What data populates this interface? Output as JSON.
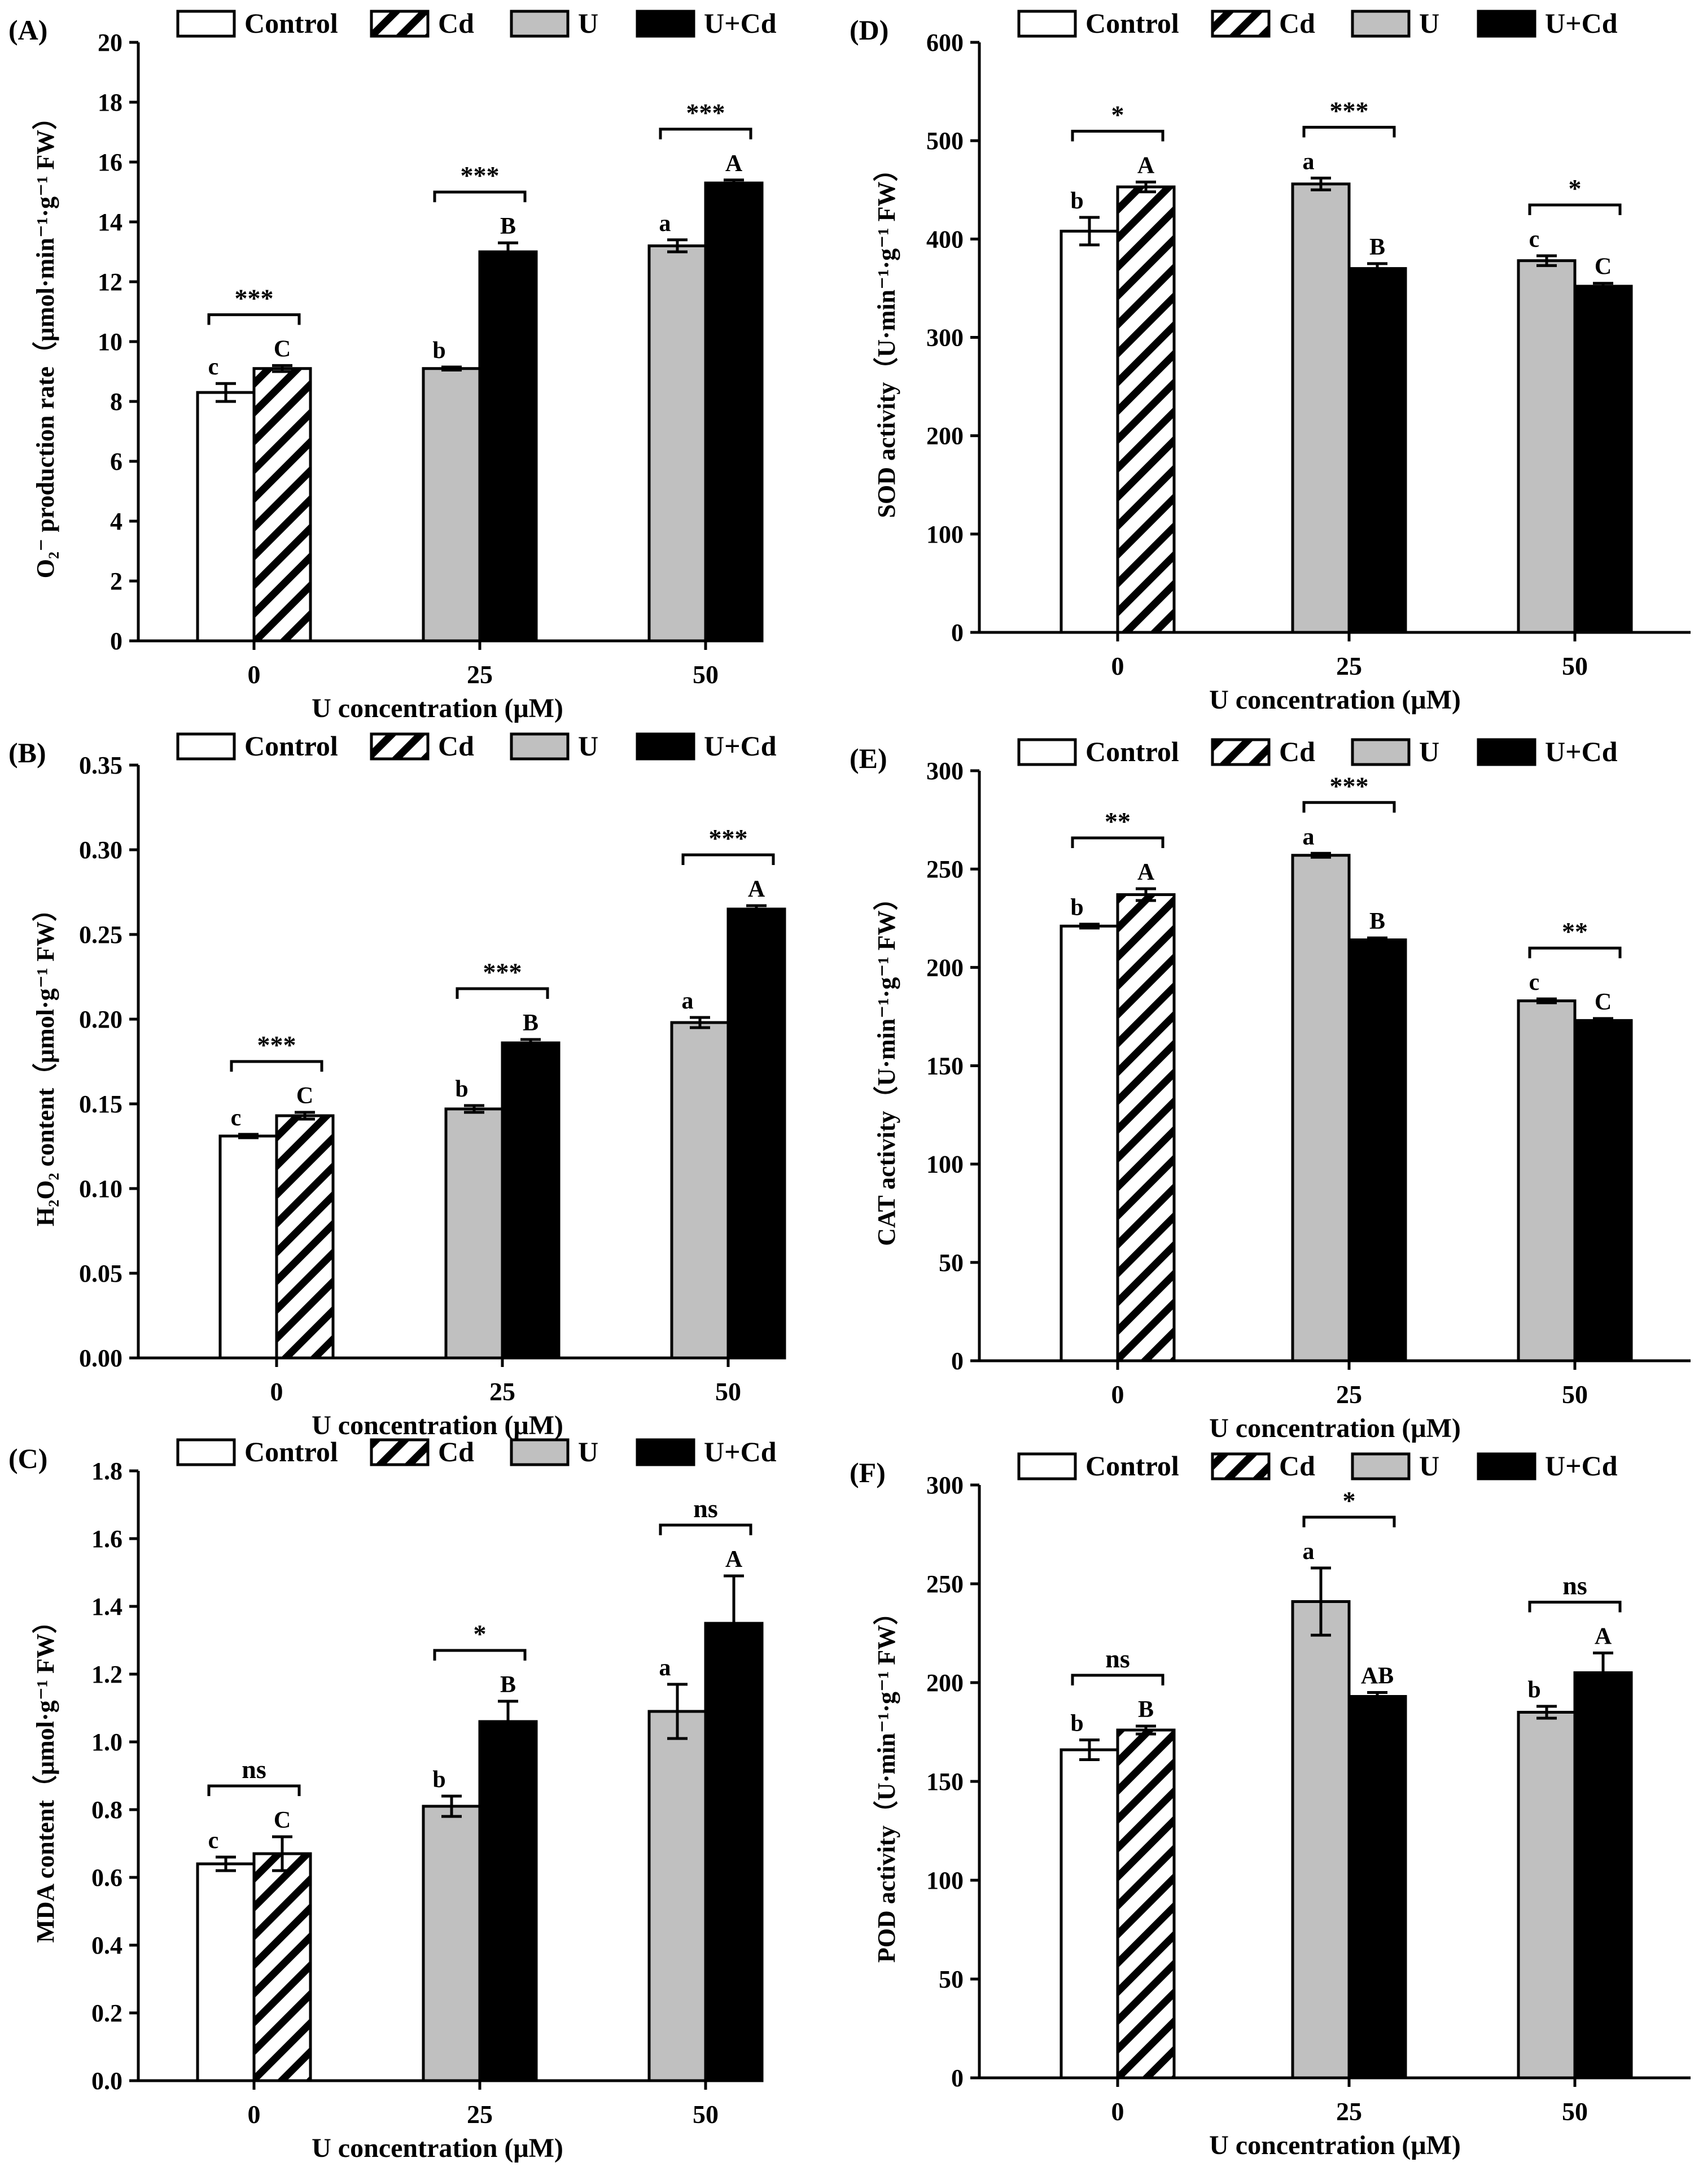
{
  "figure": {
    "legend_labels": [
      "Control",
      "Cd",
      "U",
      "U+Cd"
    ],
    "colors": {
      "control": "#ffffff",
      "u": "#c0c0c0",
      "ucd": "#000000",
      "stroke": "#000000"
    }
  },
  "chart_data": [
    {
      "id": "A",
      "panel_label": "(A)",
      "type": "bar",
      "ylabel": "O₂⁻ production rate（μmol·min⁻¹·g⁻¹ FW）",
      "xlabel": "U concentration (μM)",
      "ylim": [
        0,
        20
      ],
      "ytick_step": 2,
      "ytick_decimals": 0,
      "categories": [
        "0",
        "25",
        "50"
      ],
      "groups": [
        {
          "bars": [
            {
              "series": "Control",
              "value": 8.3,
              "err": 0.3,
              "letter": "c"
            },
            {
              "series": "Cd",
              "value": 9.1,
              "err": 0.1,
              "letter": "C"
            }
          ],
          "sig": "***"
        },
        {
          "bars": [
            {
              "series": "U",
              "value": 9.1,
              "err": 0.05,
              "letter": "b"
            },
            {
              "series": "U+Cd",
              "value": 13.0,
              "err": 0.3,
              "letter": "B"
            }
          ],
          "sig": "***"
        },
        {
          "bars": [
            {
              "series": "U",
              "value": 13.2,
              "err": 0.2,
              "letter": "a"
            },
            {
              "series": "U+Cd",
              "value": 15.3,
              "err": 0.1,
              "letter": "A"
            }
          ],
          "sig": "***"
        }
      ]
    },
    {
      "id": "B",
      "panel_label": "(B)",
      "type": "bar",
      "ylabel": "H₂O₂ content（μmol·g⁻¹ FW）",
      "xlabel": "U concentration (μM)",
      "ylim": [
        0,
        0.35
      ],
      "ytick_step": 0.05,
      "ytick_decimals": 2,
      "categories": [
        "0",
        "25",
        "50"
      ],
      "groups": [
        {
          "bars": [
            {
              "series": "Control",
              "value": 0.131,
              "err": 0.001,
              "letter": "c"
            },
            {
              "series": "Cd",
              "value": 0.143,
              "err": 0.002,
              "letter": "C"
            }
          ],
          "sig": "***"
        },
        {
          "bars": [
            {
              "series": "U",
              "value": 0.147,
              "err": 0.002,
              "letter": "b"
            },
            {
              "series": "U+Cd",
              "value": 0.186,
              "err": 0.002,
              "letter": "B"
            }
          ],
          "sig": "***"
        },
        {
          "bars": [
            {
              "series": "U",
              "value": 0.198,
              "err": 0.003,
              "letter": "a"
            },
            {
              "series": "U+Cd",
              "value": 0.265,
              "err": 0.002,
              "letter": "A"
            }
          ],
          "sig": "***"
        }
      ]
    },
    {
      "id": "C",
      "panel_label": "(C)",
      "type": "bar",
      "ylabel": "MDA content（μmol·g⁻¹ FW）",
      "xlabel": "U concentration (μM)",
      "ylim": [
        0,
        1.8
      ],
      "ytick_step": 0.2,
      "ytick_decimals": 1,
      "categories": [
        "0",
        "25",
        "50"
      ],
      "groups": [
        {
          "bars": [
            {
              "series": "Control",
              "value": 0.64,
              "err": 0.02,
              "letter": "c"
            },
            {
              "series": "Cd",
              "value": 0.67,
              "err": 0.05,
              "letter": "C"
            }
          ],
          "sig": "ns"
        },
        {
          "bars": [
            {
              "series": "U",
              "value": 0.81,
              "err": 0.03,
              "letter": "b"
            },
            {
              "series": "U+Cd",
              "value": 1.06,
              "err": 0.06,
              "letter": "B"
            }
          ],
          "sig": "*"
        },
        {
          "bars": [
            {
              "series": "U",
              "value": 1.09,
              "err": 0.08,
              "letter": "a"
            },
            {
              "series": "U+Cd",
              "value": 1.35,
              "err": 0.14,
              "letter": "A"
            }
          ],
          "sig": "ns"
        }
      ]
    },
    {
      "id": "D",
      "panel_label": "(D)",
      "type": "bar",
      "ylabel": "SOD activity（U·min⁻¹·g⁻¹ FW）",
      "xlabel": "U concentration (μM)",
      "ylim": [
        0,
        600
      ],
      "ytick_step": 100,
      "ytick_decimals": 0,
      "categories": [
        "0",
        "25",
        "50"
      ],
      "groups": [
        {
          "bars": [
            {
              "series": "Control",
              "value": 408,
              "err": 14,
              "letter": "b"
            },
            {
              "series": "Cd",
              "value": 453,
              "err": 5,
              "letter": "A"
            }
          ],
          "sig": "*"
        },
        {
          "bars": [
            {
              "series": "U",
              "value": 456,
              "err": 6,
              "letter": "a"
            },
            {
              "series": "U+Cd",
              "value": 370,
              "err": 5,
              "letter": "B"
            }
          ],
          "sig": "***"
        },
        {
          "bars": [
            {
              "series": "U",
              "value": 378,
              "err": 5,
              "letter": "c"
            },
            {
              "series": "U+Cd",
              "value": 352,
              "err": 3,
              "letter": "C"
            }
          ],
          "sig": "*"
        }
      ]
    },
    {
      "id": "E",
      "panel_label": "(E)",
      "type": "bar",
      "ylabel": "CAT activity（U·min⁻¹·g⁻¹ FW）",
      "xlabel": "U concentration (μM)",
      "ylim": [
        0,
        300
      ],
      "ytick_step": 50,
      "ytick_decimals": 0,
      "categories": [
        "0",
        "25",
        "50"
      ],
      "groups": [
        {
          "bars": [
            {
              "series": "Control",
              "value": 221,
              "err": 1,
              "letter": "b"
            },
            {
              "series": "Cd",
              "value": 237,
              "err": 3,
              "letter": "A"
            }
          ],
          "sig": "**"
        },
        {
          "bars": [
            {
              "series": "U",
              "value": 257,
              "err": 1,
              "letter": "a"
            },
            {
              "series": "U+Cd",
              "value": 214,
              "err": 1,
              "letter": "B"
            }
          ],
          "sig": "***"
        },
        {
          "bars": [
            {
              "series": "U",
              "value": 183,
              "err": 1,
              "letter": "c"
            },
            {
              "series": "U+Cd",
              "value": 173,
              "err": 1,
              "letter": "C"
            }
          ],
          "sig": "**"
        }
      ]
    },
    {
      "id": "F",
      "panel_label": "(F)",
      "type": "bar",
      "ylabel": "POD activity（U·min⁻¹·g⁻¹ FW）",
      "xlabel": "U concentration (μM)",
      "ylim": [
        0,
        300
      ],
      "ytick_step": 50,
      "ytick_decimals": 0,
      "categories": [
        "0",
        "25",
        "50"
      ],
      "groups": [
        {
          "bars": [
            {
              "series": "Control",
              "value": 166,
              "err": 5,
              "letter": "b"
            },
            {
              "series": "Cd",
              "value": 176,
              "err": 2,
              "letter": "B"
            }
          ],
          "sig": "ns"
        },
        {
          "bars": [
            {
              "series": "U",
              "value": 241,
              "err": 17,
              "letter": "a"
            },
            {
              "series": "U+Cd",
              "value": 193,
              "err": 2,
              "letter": "AB"
            }
          ],
          "sig": "*"
        },
        {
          "bars": [
            {
              "series": "U",
              "value": 185,
              "err": 3,
              "letter": "b"
            },
            {
              "series": "U+Cd",
              "value": 205,
              "err": 10,
              "letter": "A"
            }
          ],
          "sig": "ns"
        }
      ]
    }
  ]
}
